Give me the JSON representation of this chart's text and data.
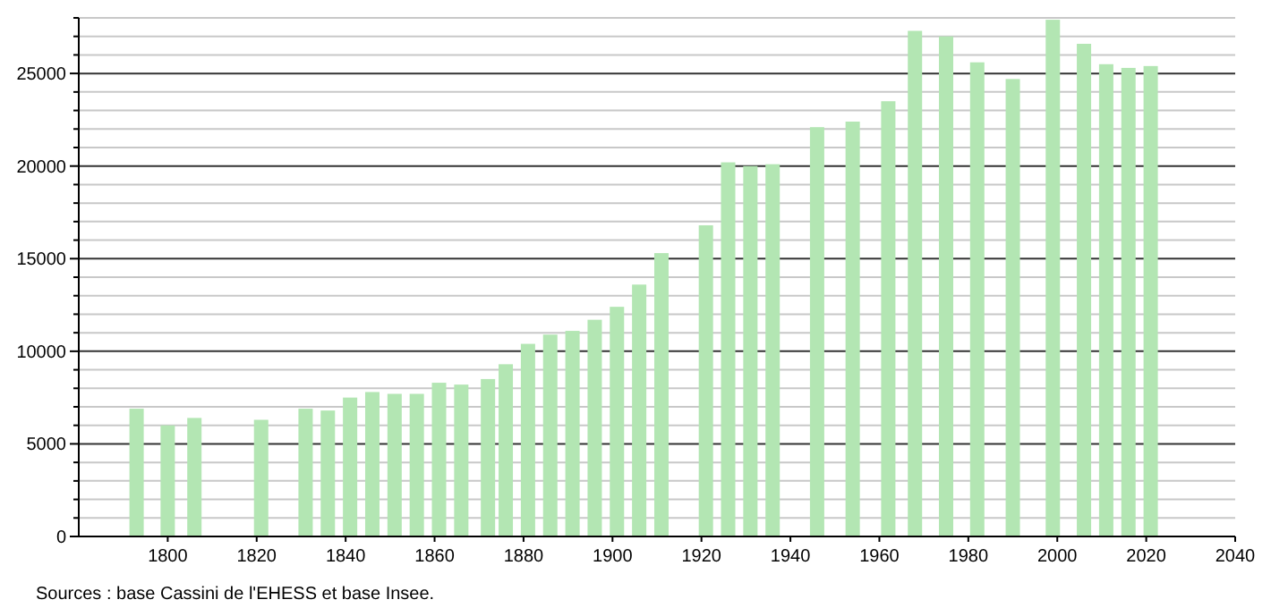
{
  "chart_data": {
    "type": "bar",
    "x": [
      1793,
      1800,
      1806,
      1821,
      1831,
      1836,
      1841,
      1846,
      1851,
      1856,
      1861,
      1866,
      1872,
      1876,
      1881,
      1886,
      1891,
      1896,
      1901,
      1906,
      1911,
      1921,
      1926,
      1931,
      1936,
      1946,
      1954,
      1962,
      1968,
      1975,
      1982,
      1990,
      1999,
      2006,
      2011,
      2016,
      2021
    ],
    "values": [
      6900,
      6000,
      6400,
      6300,
      6900,
      6800,
      7500,
      7800,
      7700,
      7700,
      8300,
      8200,
      8500,
      9300,
      10400,
      10900,
      11100,
      11700,
      12400,
      13600,
      15300,
      16800,
      20200,
      20000,
      20100,
      22100,
      22400,
      23500,
      27300,
      27000,
      25600,
      24700,
      27900,
      26600,
      25500,
      25300,
      25400
    ],
    "color": "#b3e6b3",
    "xlim": [
      1780,
      2040
    ],
    "xticks": [
      1800,
      1820,
      1840,
      1860,
      1880,
      1900,
      1920,
      1940,
      1960,
      1980,
      2000,
      2020,
      2040
    ],
    "ylim": [
      0,
      28000
    ],
    "yticks": [
      0,
      {
        "value": 1000,
        "label": null
      },
      {
        "value": 2000,
        "label": null
      },
      {
        "value": 3000,
        "label": null
      },
      {
        "value": 4000,
        "label": null
      },
      5000,
      {
        "value": 6000,
        "label": null
      },
      {
        "value": 7000,
        "label": null
      },
      {
        "value": 8000,
        "label": null
      },
      {
        "value": 9000,
        "label": null
      },
      10000,
      {
        "value": 11000,
        "label": null
      },
      {
        "value": 12000,
        "label": null
      },
      {
        "value": 13000,
        "label": null
      },
      {
        "value": 14000,
        "label": null
      },
      15000,
      {
        "value": 16000,
        "label": null
      },
      {
        "value": 17000,
        "label": null
      },
      {
        "value": 18000,
        "label": null
      },
      {
        "value": 19000,
        "label": null
      },
      20000,
      {
        "value": 21000,
        "label": null
      },
      {
        "value": 22000,
        "label": null
      },
      {
        "value": 23000,
        "label": null
      },
      {
        "value": 24000,
        "label": null
      },
      25000,
      {
        "value": 26000,
        "label": null
      },
      {
        "value": 27000,
        "label": null
      },
      {
        "value": 28000,
        "label": null
      }
    ],
    "grid": "y",
    "annotations": [
      "Sources : base Cassini de l'EHESS et base Insee."
    ]
  }
}
